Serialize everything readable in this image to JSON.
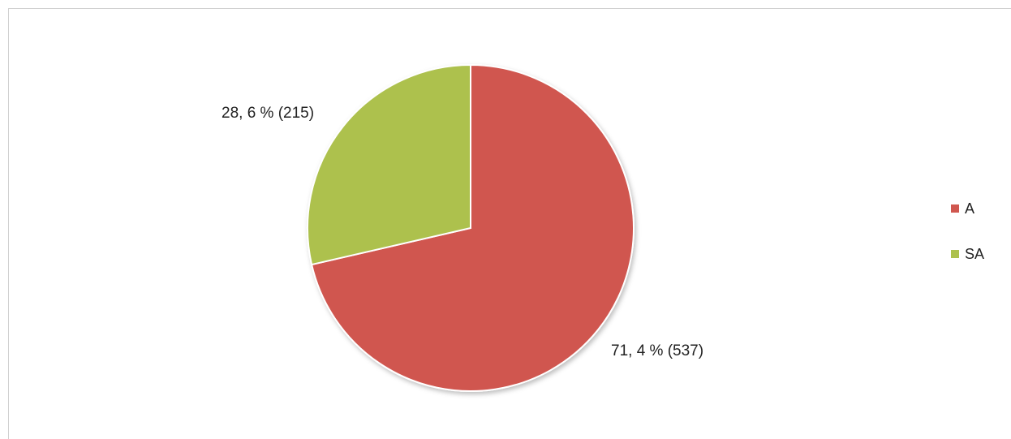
{
  "chart_data": {
    "type": "pie",
    "title": "",
    "slices": [
      {
        "name": "A",
        "percent": 71.4,
        "count": 537,
        "color": "#D0574F",
        "label": "71, 4 % (537)"
      },
      {
        "name": "SA",
        "percent": 28.6,
        "count": 215,
        "color": "#ADC14E",
        "label": "28, 6 % (215)"
      }
    ],
    "legend": {
      "placement": "right",
      "entries": [
        "A",
        "SA"
      ]
    }
  }
}
